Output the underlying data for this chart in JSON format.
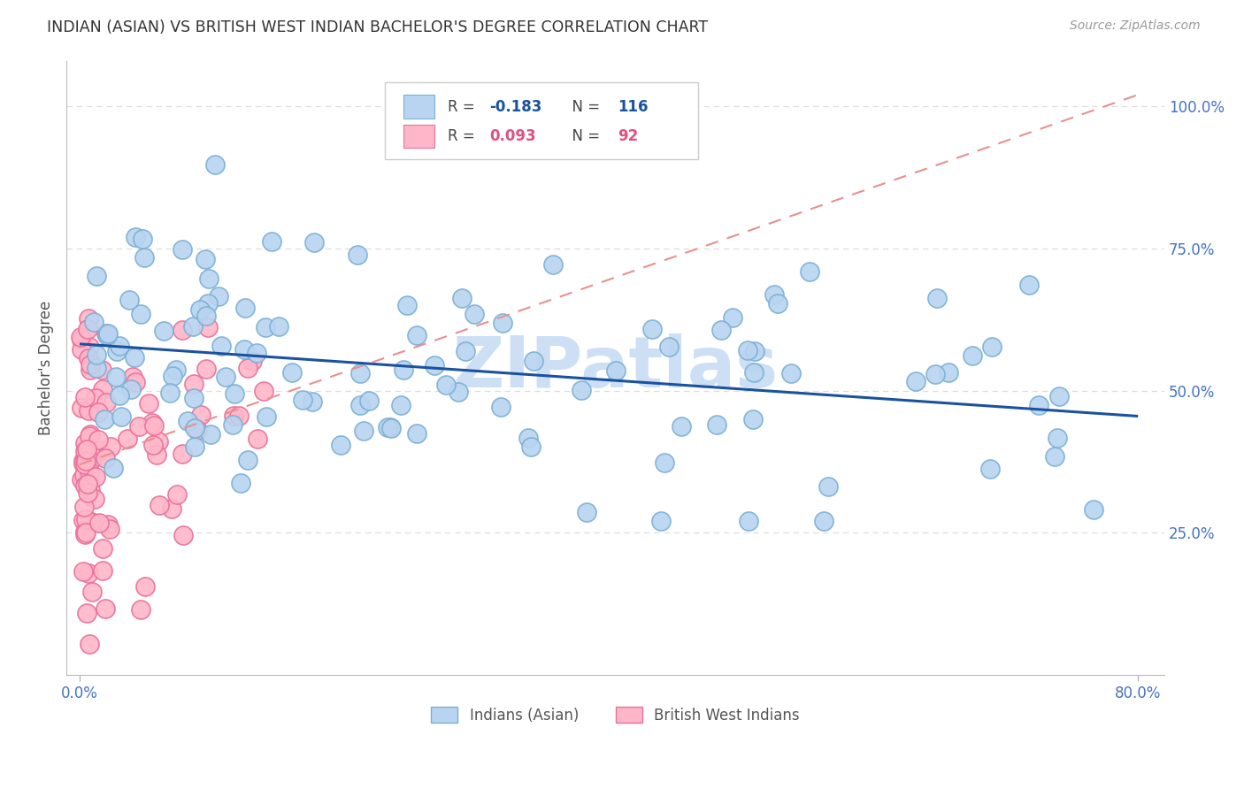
{
  "title": "INDIAN (ASIAN) VS BRITISH WEST INDIAN BACHELOR'S DEGREE CORRELATION CHART",
  "source": "Source: ZipAtlas.com",
  "ylabel": "Bachelor's Degree",
  "xlim": [
    -0.01,
    0.82
  ],
  "ylim": [
    0.0,
    1.08
  ],
  "yticks": [
    0.25,
    0.5,
    0.75,
    1.0
  ],
  "ytick_labels": [
    "25.0%",
    "50.0%",
    "75.0%",
    "100.0%"
  ],
  "xticks": [
    0.0,
    0.8
  ],
  "xtick_labels": [
    "0.0%",
    "80.0%"
  ],
  "background_color": "#ffffff",
  "grid_color": "#dddddd",
  "series1_color": "#b8d4f0",
  "series1_edge_color": "#7bafd4",
  "series1_label": "Indians (Asian)",
  "series1_R": "-0.183",
  "series1_N": "116",
  "series2_color": "#ffb6c8",
  "series2_edge_color": "#e8709a",
  "series2_label": "British West Indians",
  "series2_R": "0.093",
  "series2_N": "92",
  "series1_line_color": "#1a52a0",
  "series2_line_color": "#e89090",
  "watermark": "ZIPatlas",
  "watermark_color": "#ccdff5",
  "title_color": "#333333",
  "legend_R_color1": "#1a52a0",
  "legend_R_color2": "#e05080",
  "tick_color": "#4472c4",
  "ylabel_color": "#555555"
}
